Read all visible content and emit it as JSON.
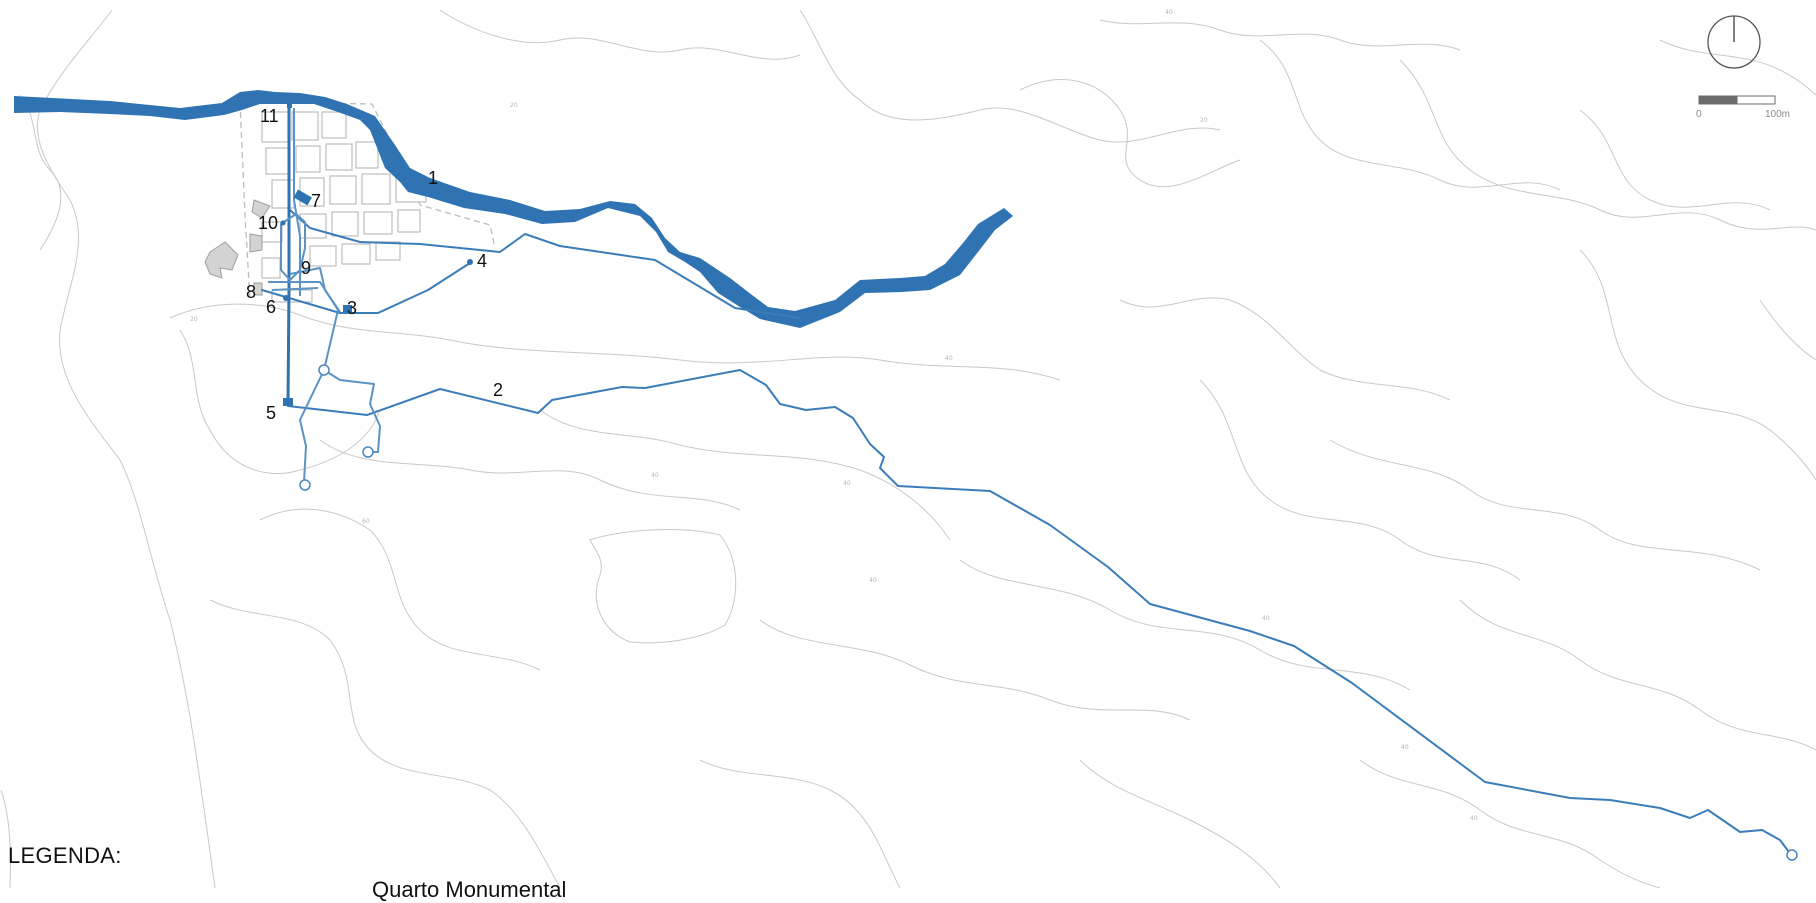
{
  "map": {
    "colors": {
      "water": "#2f73b2",
      "pipeline": "#3b7db8",
      "contour": "#c9c9c9",
      "street": "#bdbdbd",
      "building": "#d3d3d3"
    },
    "contour_labels": [
      "40",
      "20",
      "20",
      "20",
      "40",
      "40",
      "60",
      "40",
      "40",
      "40",
      "40",
      "40"
    ],
    "features": [
      {
        "id": "1"
      },
      {
        "id": "2"
      },
      {
        "id": "3"
      },
      {
        "id": "4"
      },
      {
        "id": "5"
      },
      {
        "id": "6"
      },
      {
        "id": "7"
      },
      {
        "id": "8"
      },
      {
        "id": "9"
      },
      {
        "id": "10"
      },
      {
        "id": "11"
      }
    ],
    "north_arrow_icon": "north-arrow-icon",
    "scale_bar": {
      "start_label": "0",
      "end_label": "100m"
    }
  },
  "legend": {
    "title": "LEGENDA:",
    "first_item": "Quarto Monumental"
  }
}
